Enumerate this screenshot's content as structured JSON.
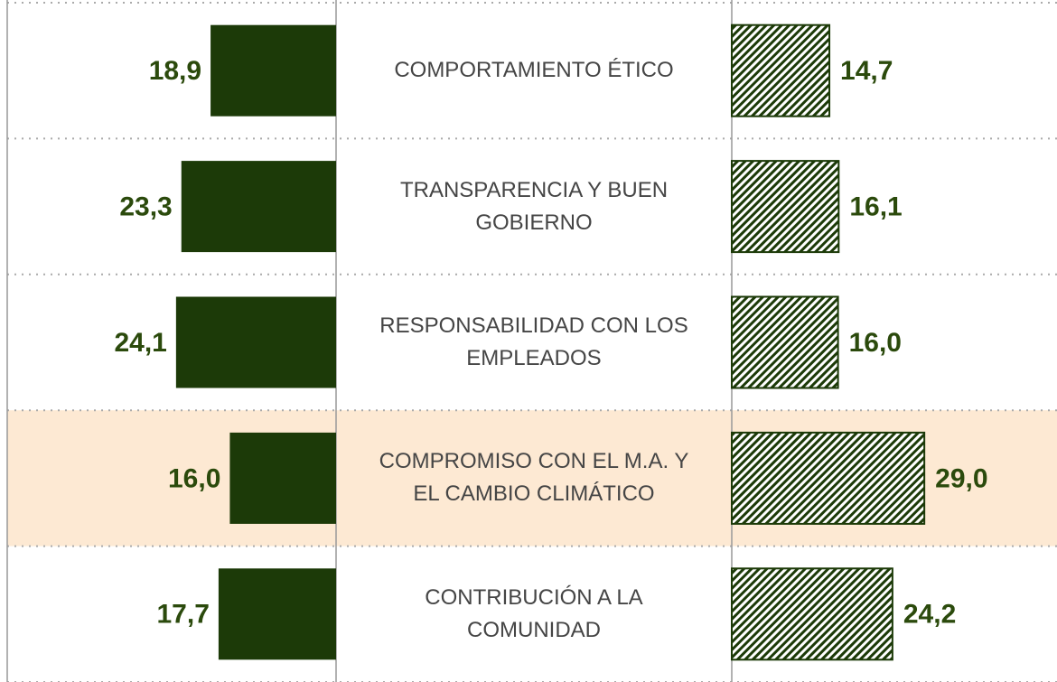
{
  "chart_data": {
    "type": "butterfly",
    "categories": [
      "COMPORTAMIENTO ÉTICO",
      "TRANSPARENCIA Y BUEN GOBIERNO",
      "RESPONSABILIDAD CON LOS EMPLEADOS",
      "COMPROMISO CON EL M.A. Y EL CAMBIO CLIMÁTICO",
      "CONTRIBUCIÓN A LA COMUNIDAD"
    ],
    "series": [
      {
        "color": "#1c3a08",
        "pattern": "solid",
        "values": [
          18.9,
          23.3,
          24.1,
          16.0,
          17.7
        ],
        "value_labels": [
          "18,9",
          "23,3",
          "24,1",
          "16,0",
          "17,7"
        ]
      },
      {
        "color": "#1c3a08",
        "pattern": "hatch",
        "values": [
          14.7,
          16.1,
          16.0,
          29.0,
          24.2
        ],
        "value_labels": [
          "14,7",
          "16,1",
          "16,0",
          "29,0",
          "24,2"
        ]
      }
    ],
    "highlight_category": 3,
    "highlight_color": "#fde9d3"
  }
}
